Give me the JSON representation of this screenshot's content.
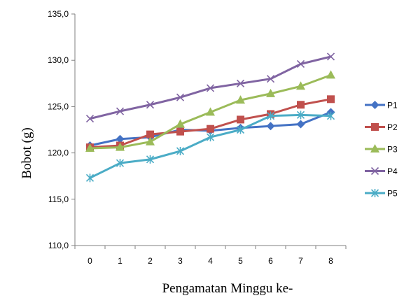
{
  "chart_data": {
    "type": "line",
    "title": "",
    "xlabel": "Pengamatan Minggu ke-",
    "ylabel": "Bobot (g)",
    "categories": [
      "0",
      "1",
      "2",
      "3",
      "4",
      "5",
      "6",
      "7",
      "8"
    ],
    "ylim": [
      110,
      135
    ],
    "yticks": [
      "110,0",
      "115,0",
      "120,0",
      "125,0",
      "130,0",
      "135,0"
    ],
    "ytick_values": [
      110,
      115,
      120,
      125,
      130,
      135
    ],
    "grid": false,
    "legend_position": "right",
    "series": [
      {
        "name": "P1",
        "color": "#4472C4",
        "marker": "diamond",
        "values": [
          120.8,
          121.5,
          121.7,
          122.5,
          122.4,
          122.7,
          122.9,
          123.1,
          124.4
        ]
      },
      {
        "name": "P2",
        "color": "#C0504D",
        "marker": "square",
        "values": [
          120.6,
          120.8,
          122.0,
          122.3,
          122.6,
          123.6,
          124.2,
          125.2,
          125.8
        ]
      },
      {
        "name": "P3",
        "color": "#9BBB59",
        "marker": "triangle",
        "values": [
          120.5,
          120.6,
          121.2,
          123.1,
          124.4,
          125.7,
          126.4,
          127.2,
          128.4
        ]
      },
      {
        "name": "P4",
        "color": "#8064A2",
        "marker": "x",
        "values": [
          123.7,
          124.5,
          125.2,
          126.0,
          127.0,
          127.5,
          128.0,
          129.6,
          130.4
        ]
      },
      {
        "name": "P5",
        "color": "#4BACC6",
        "marker": "asterisk",
        "values": [
          117.3,
          118.9,
          119.3,
          120.2,
          121.7,
          122.5,
          124.0,
          124.1,
          124.0
        ]
      }
    ]
  }
}
